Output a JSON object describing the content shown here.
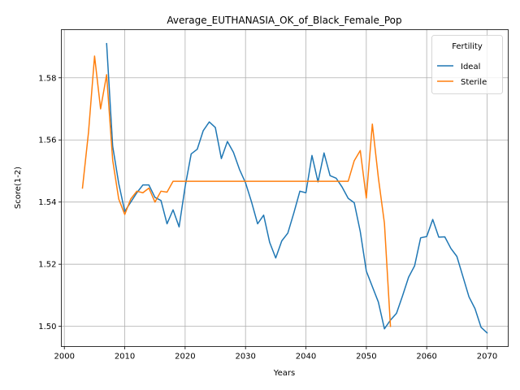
{
  "chart_data": {
    "type": "line",
    "title": "Average_EUTHANASIA_OK_of_Black_Female_Pop",
    "xlabel": "Years",
    "ylabel": "Score(1-2)",
    "xlim": [
      1999.5,
      2073.5
    ],
    "ylim": [
      1.4935,
      1.5955
    ],
    "x_ticks": [
      2000,
      2010,
      2020,
      2030,
      2040,
      2050,
      2060,
      2070
    ],
    "x_tick_labels": [
      "2000",
      "2010",
      "2020",
      "2030",
      "2040",
      "2050",
      "2060",
      "2070"
    ],
    "y_ticks": [
      1.5,
      1.52,
      1.54,
      1.56,
      1.58
    ],
    "y_tick_labels": [
      "1.50",
      "1.52",
      "1.54",
      "1.56",
      "1.58"
    ],
    "grid": true,
    "legend": {
      "title": "Fertility",
      "placement": "top-right"
    },
    "series": [
      {
        "name": "Ideal",
        "color": "#1f77b4",
        "x": [
          2007,
          2008,
          2009,
          2010,
          2011,
          2012,
          2013,
          2014,
          2015,
          2016,
          2017,
          2018,
          2019,
          2020,
          2021,
          2022,
          2023,
          2024,
          2025,
          2026,
          2027,
          2028,
          2029,
          2030,
          2031,
          2032,
          2033,
          2034,
          2035,
          2036,
          2037,
          2038,
          2039,
          2040,
          2041,
          2042,
          2043,
          2044,
          2045,
          2046,
          2047,
          2048,
          2049,
          2050,
          2051,
          2052,
          2053,
          2054,
          2055,
          2056,
          2057,
          2058,
          2059,
          2060,
          2061,
          2062,
          2063,
          2064,
          2065,
          2066,
          2067,
          2068,
          2069,
          2070
        ],
        "values": [
          1.591,
          1.558,
          1.546,
          1.537,
          1.54,
          1.543,
          1.5455,
          1.5455,
          1.5415,
          1.5405,
          1.533,
          1.5375,
          1.532,
          1.545,
          1.5555,
          1.557,
          1.563,
          1.5658,
          1.564,
          1.554,
          1.5595,
          1.556,
          1.5505,
          1.5462,
          1.54,
          1.533,
          1.5358,
          1.527,
          1.522,
          1.5275,
          1.53,
          1.5365,
          1.5435,
          1.543,
          1.555,
          1.5465,
          1.5558,
          1.5485,
          1.5477,
          1.5448,
          1.5412,
          1.5398,
          1.5305,
          1.5178,
          1.5128,
          1.5078,
          1.4992,
          1.502,
          1.5042,
          1.5098,
          1.5158,
          1.5195,
          1.5285,
          1.5289,
          1.5344,
          1.5287,
          1.5288,
          1.5251,
          1.5225,
          1.516,
          1.5095,
          1.5057,
          1.4997,
          1.4979
        ]
      },
      {
        "name": "Sterile",
        "color": "#ff7f0e",
        "x": [
          2003,
          2004,
          2005,
          2006,
          2007,
          2008,
          2009,
          2010,
          2011,
          2012,
          2013,
          2014,
          2015,
          2016,
          2017,
          2018,
          2019,
          2020,
          2021,
          2022,
          2023,
          2024,
          2025,
          2026,
          2027,
          2028,
          2029,
          2030,
          2031,
          2032,
          2033,
          2034,
          2035,
          2036,
          2037,
          2038,
          2039,
          2040,
          2041,
          2042,
          2043,
          2044,
          2045,
          2046,
          2047,
          2048,
          2049,
          2050,
          2051,
          2052,
          2053,
          2054
        ],
        "values": [
          1.5445,
          1.5625,
          1.587,
          1.57,
          1.581,
          1.5535,
          1.541,
          1.536,
          1.541,
          1.5435,
          1.543,
          1.5445,
          1.54,
          1.5435,
          1.5432,
          1.5467,
          1.5467,
          1.5467,
          1.5467,
          1.5467,
          1.5467,
          1.5467,
          1.5467,
          1.5467,
          1.5467,
          1.5467,
          1.5467,
          1.5467,
          1.5467,
          1.5467,
          1.5467,
          1.5467,
          1.5467,
          1.5467,
          1.5467,
          1.5467,
          1.5467,
          1.5467,
          1.5467,
          1.5467,
          1.5467,
          1.5467,
          1.5467,
          1.5467,
          1.5467,
          1.5533,
          1.5566,
          1.5413,
          1.5651,
          1.5478,
          1.5332,
          1.5
        ]
      }
    ]
  }
}
